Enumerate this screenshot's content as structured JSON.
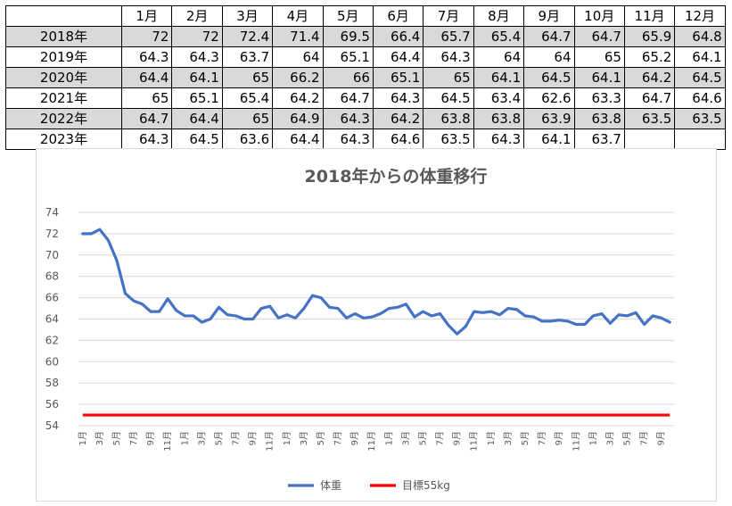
{
  "table": {
    "months": [
      "1月",
      "2月",
      "3月",
      "4月",
      "5月",
      "6月",
      "7月",
      "8月",
      "9月",
      "10月",
      "11月",
      "12月"
    ],
    "rows": [
      {
        "year": "2018年",
        "values": [
          "72",
          "72",
          "72.4",
          "71.4",
          "69.5",
          "66.4",
          "65.7",
          "65.4",
          "64.7",
          "64.7",
          "65.9",
          "64.8"
        ]
      },
      {
        "year": "2019年",
        "values": [
          "64.3",
          "64.3",
          "63.7",
          "64",
          "65.1",
          "64.4",
          "64.3",
          "64",
          "64",
          "65",
          "65.2",
          "64.1"
        ]
      },
      {
        "year": "2020年",
        "values": [
          "64.4",
          "64.1",
          "65",
          "66.2",
          "66",
          "65.1",
          "65",
          "64.1",
          "64.5",
          "64.1",
          "64.2",
          "64.5"
        ]
      },
      {
        "year": "2021年",
        "values": [
          "65",
          "65.1",
          "65.4",
          "64.2",
          "64.7",
          "64.3",
          "64.5",
          "63.4",
          "62.6",
          "63.3",
          "64.7",
          "64.6"
        ]
      },
      {
        "year": "2022年",
        "values": [
          "64.7",
          "64.4",
          "65",
          "64.9",
          "64.3",
          "64.2",
          "63.8",
          "63.8",
          "63.9",
          "63.8",
          "63.5",
          "63.5"
        ]
      },
      {
        "year": "2023年",
        "values": [
          "64.3",
          "64.5",
          "63.6",
          "64.4",
          "64.3",
          "64.6",
          "63.5",
          "64.3",
          "64.1",
          "63.7",
          "",
          ""
        ]
      }
    ]
  },
  "chart_data": {
    "type": "line",
    "title": "2018年からの体重移行",
    "xlabel": "",
    "ylabel": "",
    "ylim": [
      54,
      74
    ],
    "yticks": [
      "54",
      "56",
      "58",
      "60",
      "62",
      "64",
      "66",
      "68",
      "70",
      "72",
      "74"
    ],
    "x_tick_labels": [
      "1月",
      "3月",
      "5月",
      "7月",
      "9月",
      "11月",
      "1月",
      "3月",
      "5月",
      "7月",
      "9月",
      "11月",
      "1月",
      "3月",
      "5月",
      "7月",
      "9月",
      "11月",
      "1月",
      "3月",
      "5月",
      "7月",
      "9月",
      "11月",
      "1月",
      "3月",
      "5月",
      "7月",
      "9月",
      "11月",
      "1月",
      "3月",
      "5月",
      "7月",
      "9月"
    ],
    "grid": true,
    "legend_position": "bottom",
    "series": [
      {
        "name": "体重",
        "color": "#4472c4",
        "values": [
          72,
          72,
          72.4,
          71.4,
          69.5,
          66.4,
          65.7,
          65.4,
          64.7,
          64.7,
          65.9,
          64.8,
          64.3,
          64.3,
          63.7,
          64,
          65.1,
          64.4,
          64.3,
          64,
          64,
          65,
          65.2,
          64.1,
          64.4,
          64.1,
          65,
          66.2,
          66,
          65.1,
          65,
          64.1,
          64.5,
          64.1,
          64.2,
          64.5,
          65,
          65.1,
          65.4,
          64.2,
          64.7,
          64.3,
          64.5,
          63.4,
          62.6,
          63.3,
          64.7,
          64.6,
          64.7,
          64.4,
          65,
          64.9,
          64.3,
          64.2,
          63.8,
          63.8,
          63.9,
          63.8,
          63.5,
          63.5,
          64.3,
          64.5,
          63.6,
          64.4,
          64.3,
          64.6,
          63.5,
          64.3,
          64.1,
          63.7
        ]
      },
      {
        "name": "目標55kg",
        "color": "#ff0000",
        "constant": 55
      }
    ]
  }
}
